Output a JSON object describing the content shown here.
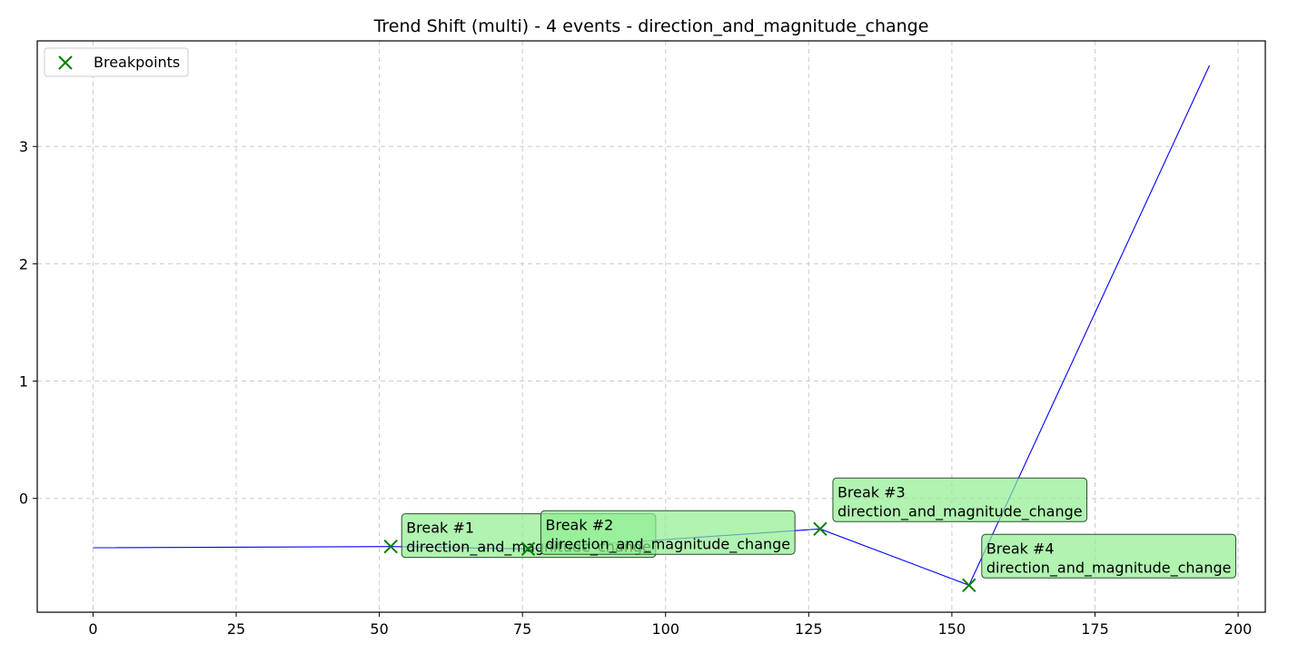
{
  "chart_data": {
    "type": "line",
    "title": "Trend Shift (multi) - 4 events - direction_and_magnitude_change",
    "xlabel": "",
    "ylabel": "",
    "xlim": [
      -9.75,
      204.75
    ],
    "ylim": [
      -0.97,
      3.9
    ],
    "xticks": [
      0,
      25,
      50,
      75,
      100,
      125,
      150,
      175,
      200
    ],
    "yticks": [
      0,
      1,
      2,
      3
    ],
    "grid": true,
    "legend_position": "upper-left",
    "colors": {
      "line": "#0000ff",
      "marker": "#008000",
      "annotation_fill": "#90ee90",
      "annotation_edge": "#2f4f2f",
      "grid": "#cccccc"
    },
    "series": [
      {
        "x": [
          0,
          52,
          76,
          127,
          153,
          195
        ],
        "y": [
          -0.42,
          -0.41,
          -0.43,
          -0.26,
          -0.74,
          3.69
        ]
      }
    ],
    "breakpoints": {
      "name": "Breakpoints",
      "x": [
        52,
        76,
        127,
        153
      ],
      "y": [
        -0.41,
        -0.43,
        -0.26,
        -0.74
      ]
    },
    "annotations": [
      {
        "title": "Break #1",
        "text": "direction_and_magnitude_change"
      },
      {
        "title": "Break #2",
        "text": "direction_and_magnitude_change"
      },
      {
        "title": "Break #3",
        "text": "direction_and_magnitude_change"
      },
      {
        "title": "Break #4",
        "text": "direction_and_magnitude_change"
      }
    ]
  }
}
